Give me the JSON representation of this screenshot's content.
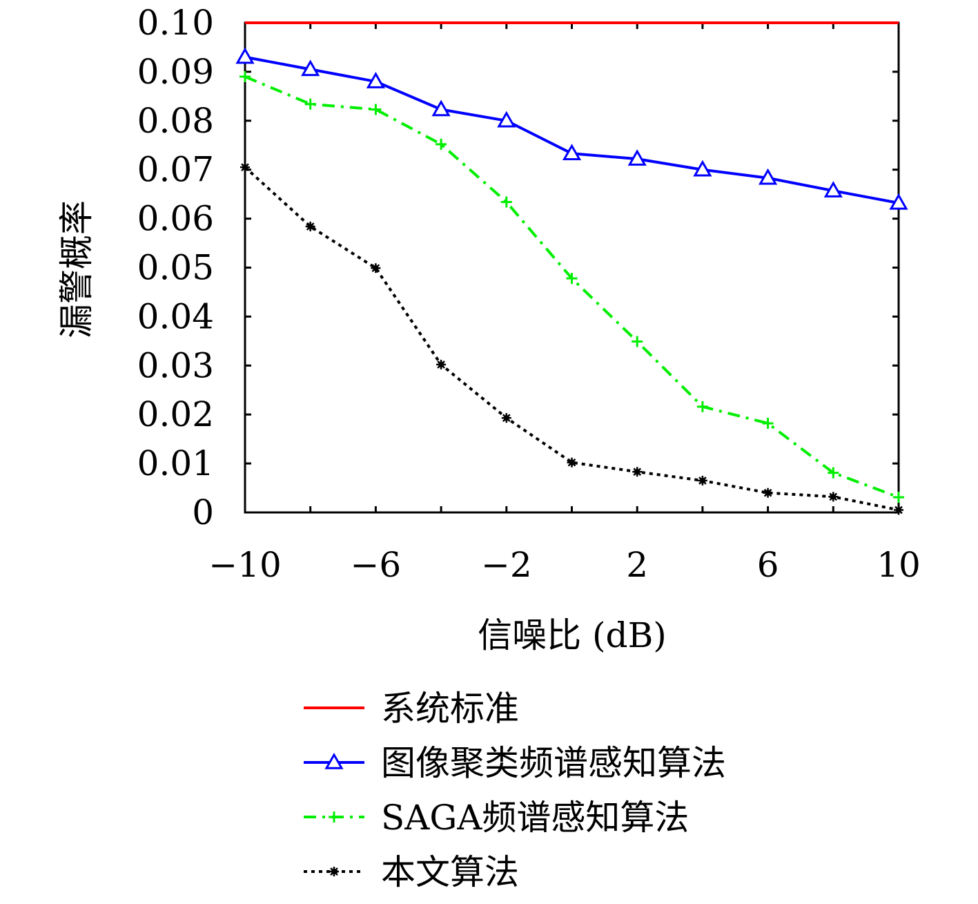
{
  "chart_data": {
    "type": "line",
    "title": "",
    "xlabel": "信噪比 (dB)",
    "ylabel": "漏警概率",
    "x": [
      -10,
      -8,
      -6,
      -4,
      -2,
      0,
      2,
      4,
      6,
      8,
      10
    ],
    "xticks": [
      -10,
      -6,
      -2,
      2,
      6,
      10
    ],
    "xtick_labels": [
      "−10",
      "−6",
      "−2",
      "2",
      "6",
      "10"
    ],
    "xlim": [
      -10,
      10
    ],
    "yticks": [
      0,
      0.01,
      0.02,
      0.03,
      0.04,
      0.05,
      0.06,
      0.07,
      0.08,
      0.09,
      0.1
    ],
    "ytick_labels": [
      "0",
      "0.01",
      "0.02",
      "0.03",
      "0.04",
      "0.05",
      "0.06",
      "0.07",
      "0.08",
      "0.09",
      "0.10"
    ],
    "ylim": [
      0,
      0.1
    ],
    "grid": false,
    "legend_position": "bottom, outside plot",
    "series": [
      {
        "name": "系统标准",
        "color": "#ff0000",
        "line_style": "solid",
        "marker": "none",
        "values": [
          0.1,
          0.1,
          0.1,
          0.1,
          0.1,
          0.1,
          0.1,
          0.1,
          0.1,
          0.1,
          0.1
        ]
      },
      {
        "name": "图像聚类频谱感知算法",
        "color": "#0000ff",
        "line_style": "solid",
        "marker": "triangle",
        "values": [
          0.093,
          0.0905,
          0.088,
          0.0823,
          0.08,
          0.0733,
          0.0722,
          0.07,
          0.0683,
          0.0657,
          0.0632
        ]
      },
      {
        "name": "SAGA频谱感知算法",
        "color": "#00ee00",
        "line_style": "dashdot",
        "marker": "plus",
        "values": [
          0.089,
          0.0834,
          0.0823,
          0.0752,
          0.0634,
          0.0478,
          0.0349,
          0.0216,
          0.0182,
          0.0081,
          0.0031
        ]
      },
      {
        "name": "本文算法",
        "color": "#000000",
        "line_style": "dotted",
        "marker": "asterisk",
        "values": [
          0.0705,
          0.0584,
          0.0499,
          0.0302,
          0.0193,
          0.0102,
          0.0083,
          0.0065,
          0.004,
          0.0032,
          0.0005
        ]
      }
    ]
  }
}
